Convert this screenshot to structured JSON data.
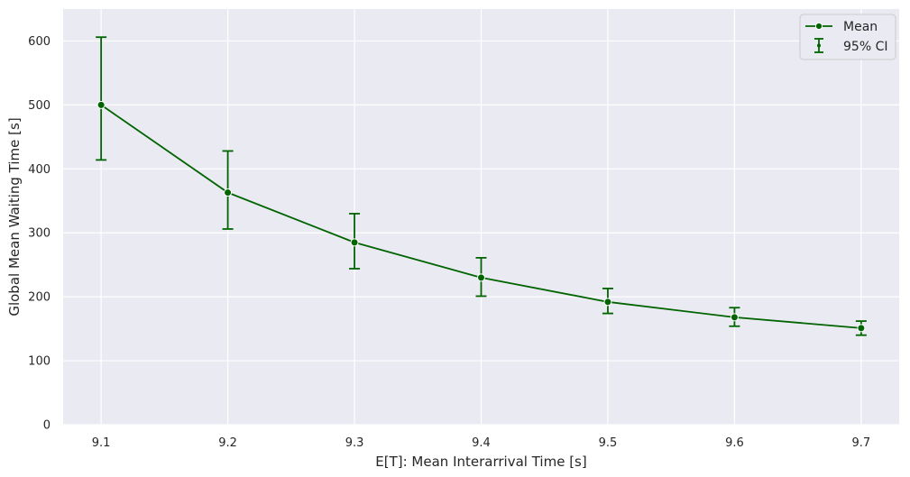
{
  "chart_data": {
    "type": "line",
    "title": "",
    "xlabel": "E[T]: Mean Interarrival Time [s]",
    "ylabel": "Global Mean Waiting Time [s]",
    "x": [
      9.1,
      9.2,
      9.3,
      9.4,
      9.5,
      9.6,
      9.7
    ],
    "x_tick_labels": [
      "9.1",
      "9.2",
      "9.3",
      "9.4",
      "9.5",
      "9.6",
      "9.7"
    ],
    "y_ticks": [
      0,
      100,
      200,
      300,
      400,
      500,
      600
    ],
    "y_tick_labels": [
      "0",
      "100",
      "200",
      "300",
      "400",
      "500",
      "600"
    ],
    "xlim": [
      9.07,
      9.73
    ],
    "ylim": [
      0,
      650
    ],
    "series": [
      {
        "name": "Mean",
        "values": [
          500,
          363,
          285,
          230,
          192,
          168,
          151
        ],
        "ci_lower": [
          414,
          306,
          244,
          201,
          174,
          154,
          140
        ],
        "ci_upper": [
          606,
          428,
          330,
          261,
          213,
          183,
          162
        ]
      }
    ],
    "legend": {
      "position": "top-right",
      "entries": [
        "Mean",
        "95% CI"
      ]
    },
    "grid": true,
    "colors": {
      "series": "#006400",
      "background": "#eaeaf2",
      "grid": "#ffffff",
      "text": "#262626"
    }
  }
}
